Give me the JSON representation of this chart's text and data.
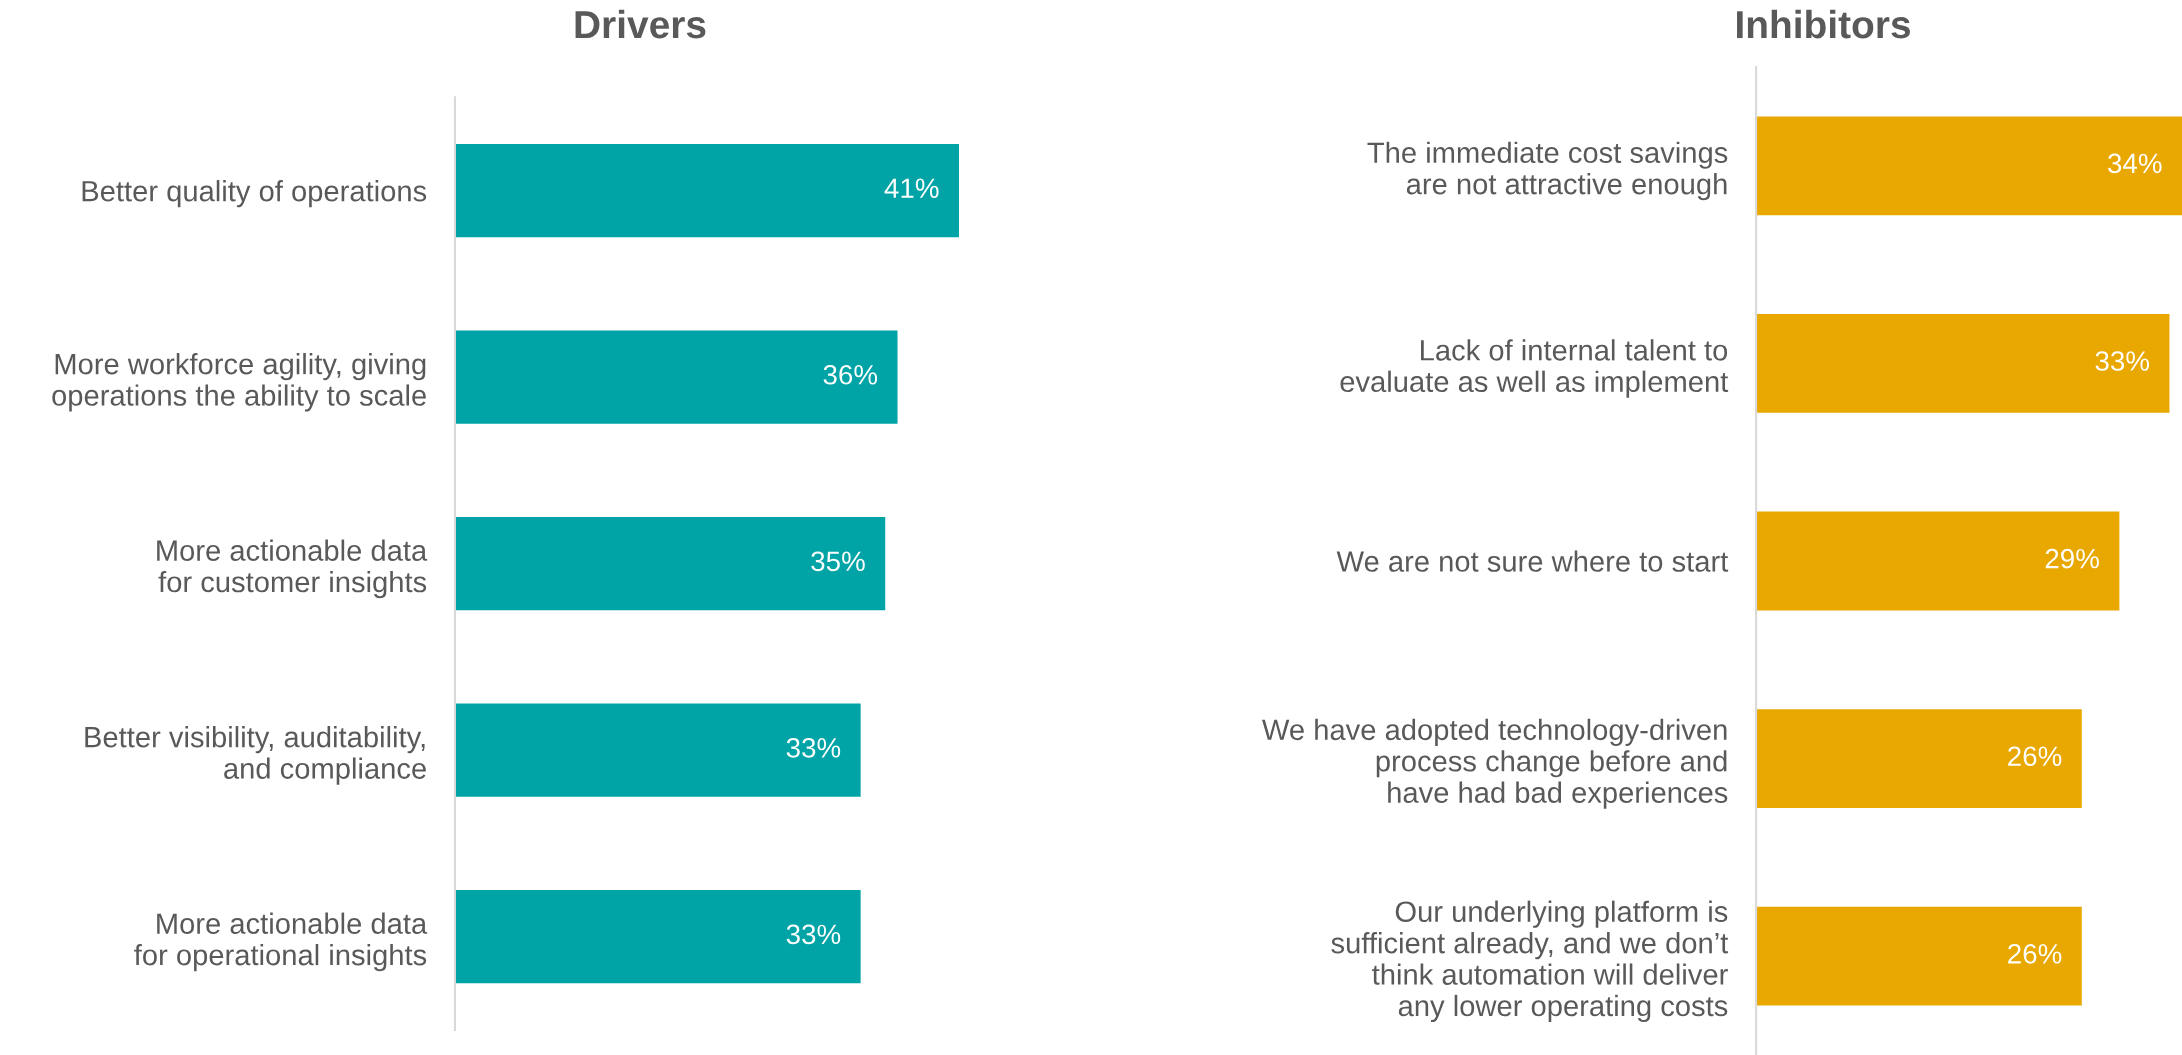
{
  "chart_data": [
    {
      "type": "bar",
      "orientation": "horizontal",
      "title": "Drivers",
      "categories": [
        "Better quality of operations",
        "More workforce agility, giving\noperations the ability to scale",
        "More actionable data\nfor customer insights",
        "Better visibility, auditability,\nand compliance",
        "More actionable data\nfor operational insights"
      ],
      "values": [
        41,
        36,
        35,
        33,
        33
      ],
      "value_labels": [
        "41%",
        "36%",
        "35%",
        "33%",
        "33%"
      ],
      "color": "#00a4a6",
      "tick_labels": "y",
      "grid": false,
      "legend": false
    },
    {
      "type": "bar",
      "orientation": "horizontal",
      "title": "Inhibitors",
      "categories": [
        "The immediate cost savings\nare not attractive enough",
        "Lack of internal talent to\nevaluate as well as implement",
        "We are not sure where to start",
        "We have adopted technology-driven\nprocess change before and\nhave had bad experiences",
        "Our underlying platform is\nsufficient already, and we don’t\nthink automation will deliver\nany lower operating costs"
      ],
      "values": [
        34,
        33,
        29,
        26,
        26
      ],
      "value_labels": [
        "34%",
        "33%",
        "29%",
        "26%",
        "26%"
      ],
      "color": "#e8a800",
      "tick_labels": "y",
      "grid": false,
      "legend": false
    }
  ]
}
